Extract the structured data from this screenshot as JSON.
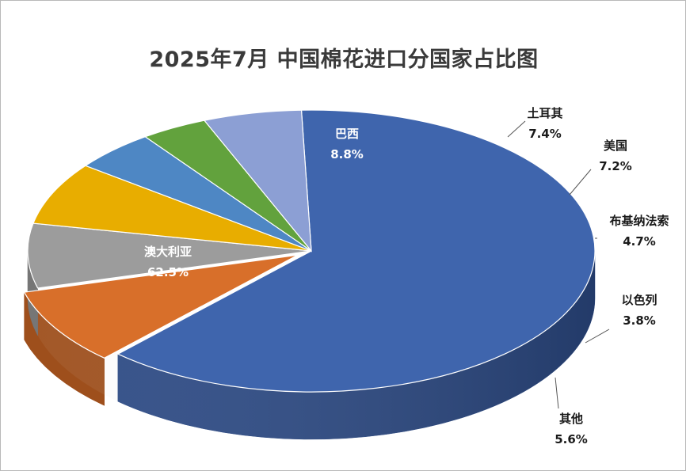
{
  "chart_data": {
    "type": "pie",
    "title": "2025年7月 中国棉花进口分国家占比图",
    "unit": "%",
    "slices": [
      {
        "label": "澳大利亚",
        "value": 62.5,
        "display": "62.5%",
        "color": "#3f65ad",
        "side": "#2c4a85",
        "label_inside": true
      },
      {
        "label": "巴西",
        "value": 8.8,
        "display": "8.8%",
        "color": "#d86f2a",
        "side": "#9e4f1c",
        "label_inside": true
      },
      {
        "label": "土耳其",
        "value": 7.4,
        "display": "7.4%",
        "color": "#9c9c9c",
        "side": "#6e6e6e",
        "label_inside": false
      },
      {
        "label": "美国",
        "value": 7.2,
        "display": "7.2%",
        "color": "#e8ad00",
        "side": "#a87c00",
        "label_inside": false
      },
      {
        "label": "布基纳法索",
        "value": 4.7,
        "display": "4.7%",
        "color": "#4e87c4",
        "side": "#325d8a",
        "label_inside": false
      },
      {
        "label": "以色列",
        "value": 3.8,
        "display": "3.8%",
        "color": "#62a23d",
        "side": "#2a4a1c",
        "label_inside": false
      },
      {
        "label": "其他",
        "value": 5.6,
        "display": "5.6%",
        "color": "#8c9fd4",
        "side": "#3a4456",
        "label_inside": false
      }
    ]
  }
}
